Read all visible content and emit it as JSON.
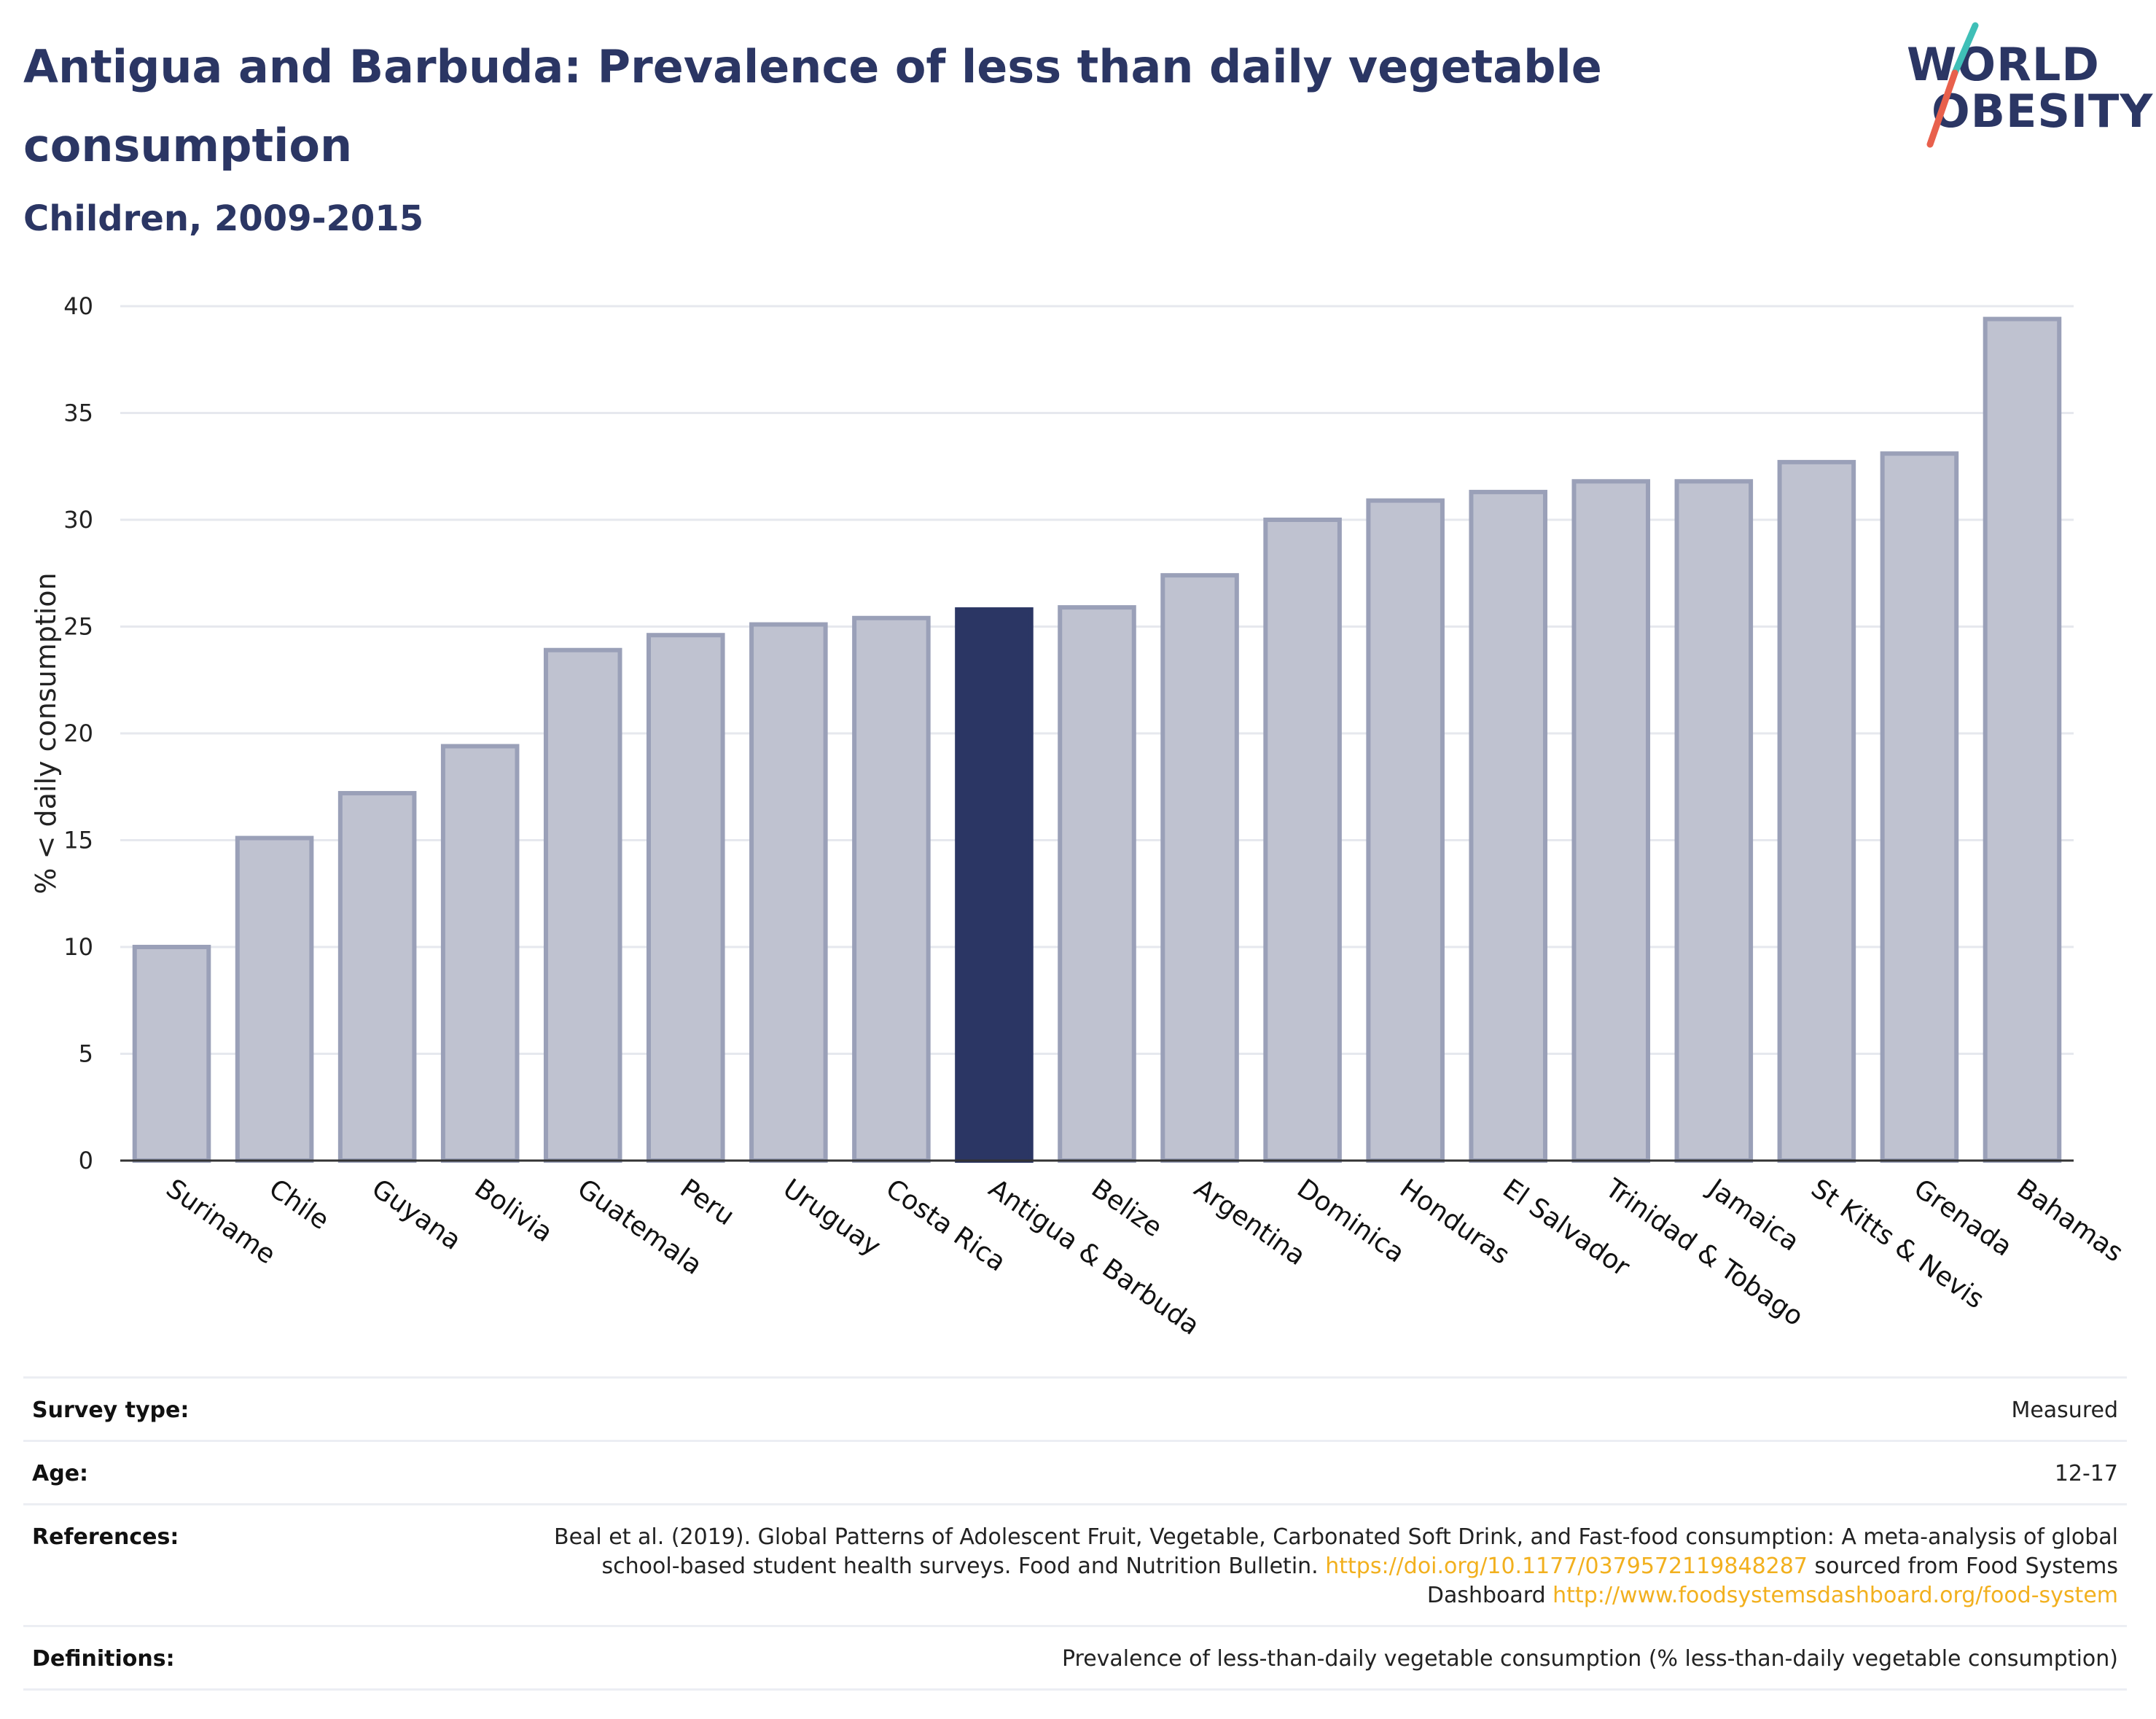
{
  "header": {
    "title": "Antigua and Barbuda: Prevalence of less than daily vegetable consumption",
    "subtitle": "Children, 2009-2015"
  },
  "logo": {
    "line1": "WORLD",
    "line2": "OBESITY",
    "slash_colors": [
      "#3fbfb7",
      "#e8604c"
    ]
  },
  "colors": {
    "highlight": "#2b3664",
    "bar_fill": "#bfc2d0",
    "bar_stroke": "#9aa0b8",
    "grid": "#e6e8ee",
    "link": "#f2b01e"
  },
  "chart_data": {
    "type": "bar",
    "title": "",
    "xlabel": "",
    "ylabel": "% < daily consumption",
    "ylim": [
      0,
      40
    ],
    "yticks": [
      0,
      5,
      10,
      15,
      20,
      25,
      30,
      35,
      40
    ],
    "grid": true,
    "highlight": "Antigua & Barbuda",
    "categories": [
      "Suriname",
      "Chile",
      "Guyana",
      "Bolivia",
      "Guatemala",
      "Peru",
      "Uruguay",
      "Costa Rica",
      "Antigua & Barbuda",
      "Belize",
      "Argentina",
      "Dominica",
      "Honduras",
      "El Salvador",
      "Trinidad & Tobago",
      "Jamaica",
      "St Kitts & Nevis",
      "Grenada",
      "Bahamas"
    ],
    "values": [
      10.0,
      15.1,
      17.2,
      19.4,
      23.9,
      24.6,
      25.1,
      25.4,
      25.8,
      25.9,
      27.4,
      30.0,
      30.9,
      31.3,
      31.8,
      31.8,
      32.7,
      33.1,
      39.4
    ]
  },
  "meta": {
    "survey_label": "Survey type:",
    "survey_value": "Measured",
    "age_label": "Age:",
    "age_value": "12-17",
    "references_label": "References:",
    "references_text1": "Beal et al. (2019). Global Patterns of Adolescent Fruit, Vegetable, Carbonated Soft Drink, and Fast-food consumption: A meta-analysis of global school-based student health surveys. Food and Nutrition Bulletin. ",
    "references_link1": "https://doi.org/10.1177/0379572119848287",
    "references_text2": " sourced from Food Systems Dashboard ",
    "references_link2": "http://www.foodsystemsdashboard.org/food-system",
    "definitions_label": "Definitions:",
    "definitions_value": "Prevalence of less-than-daily vegetable consumption (% less-than-daily vegetable consumption)"
  }
}
